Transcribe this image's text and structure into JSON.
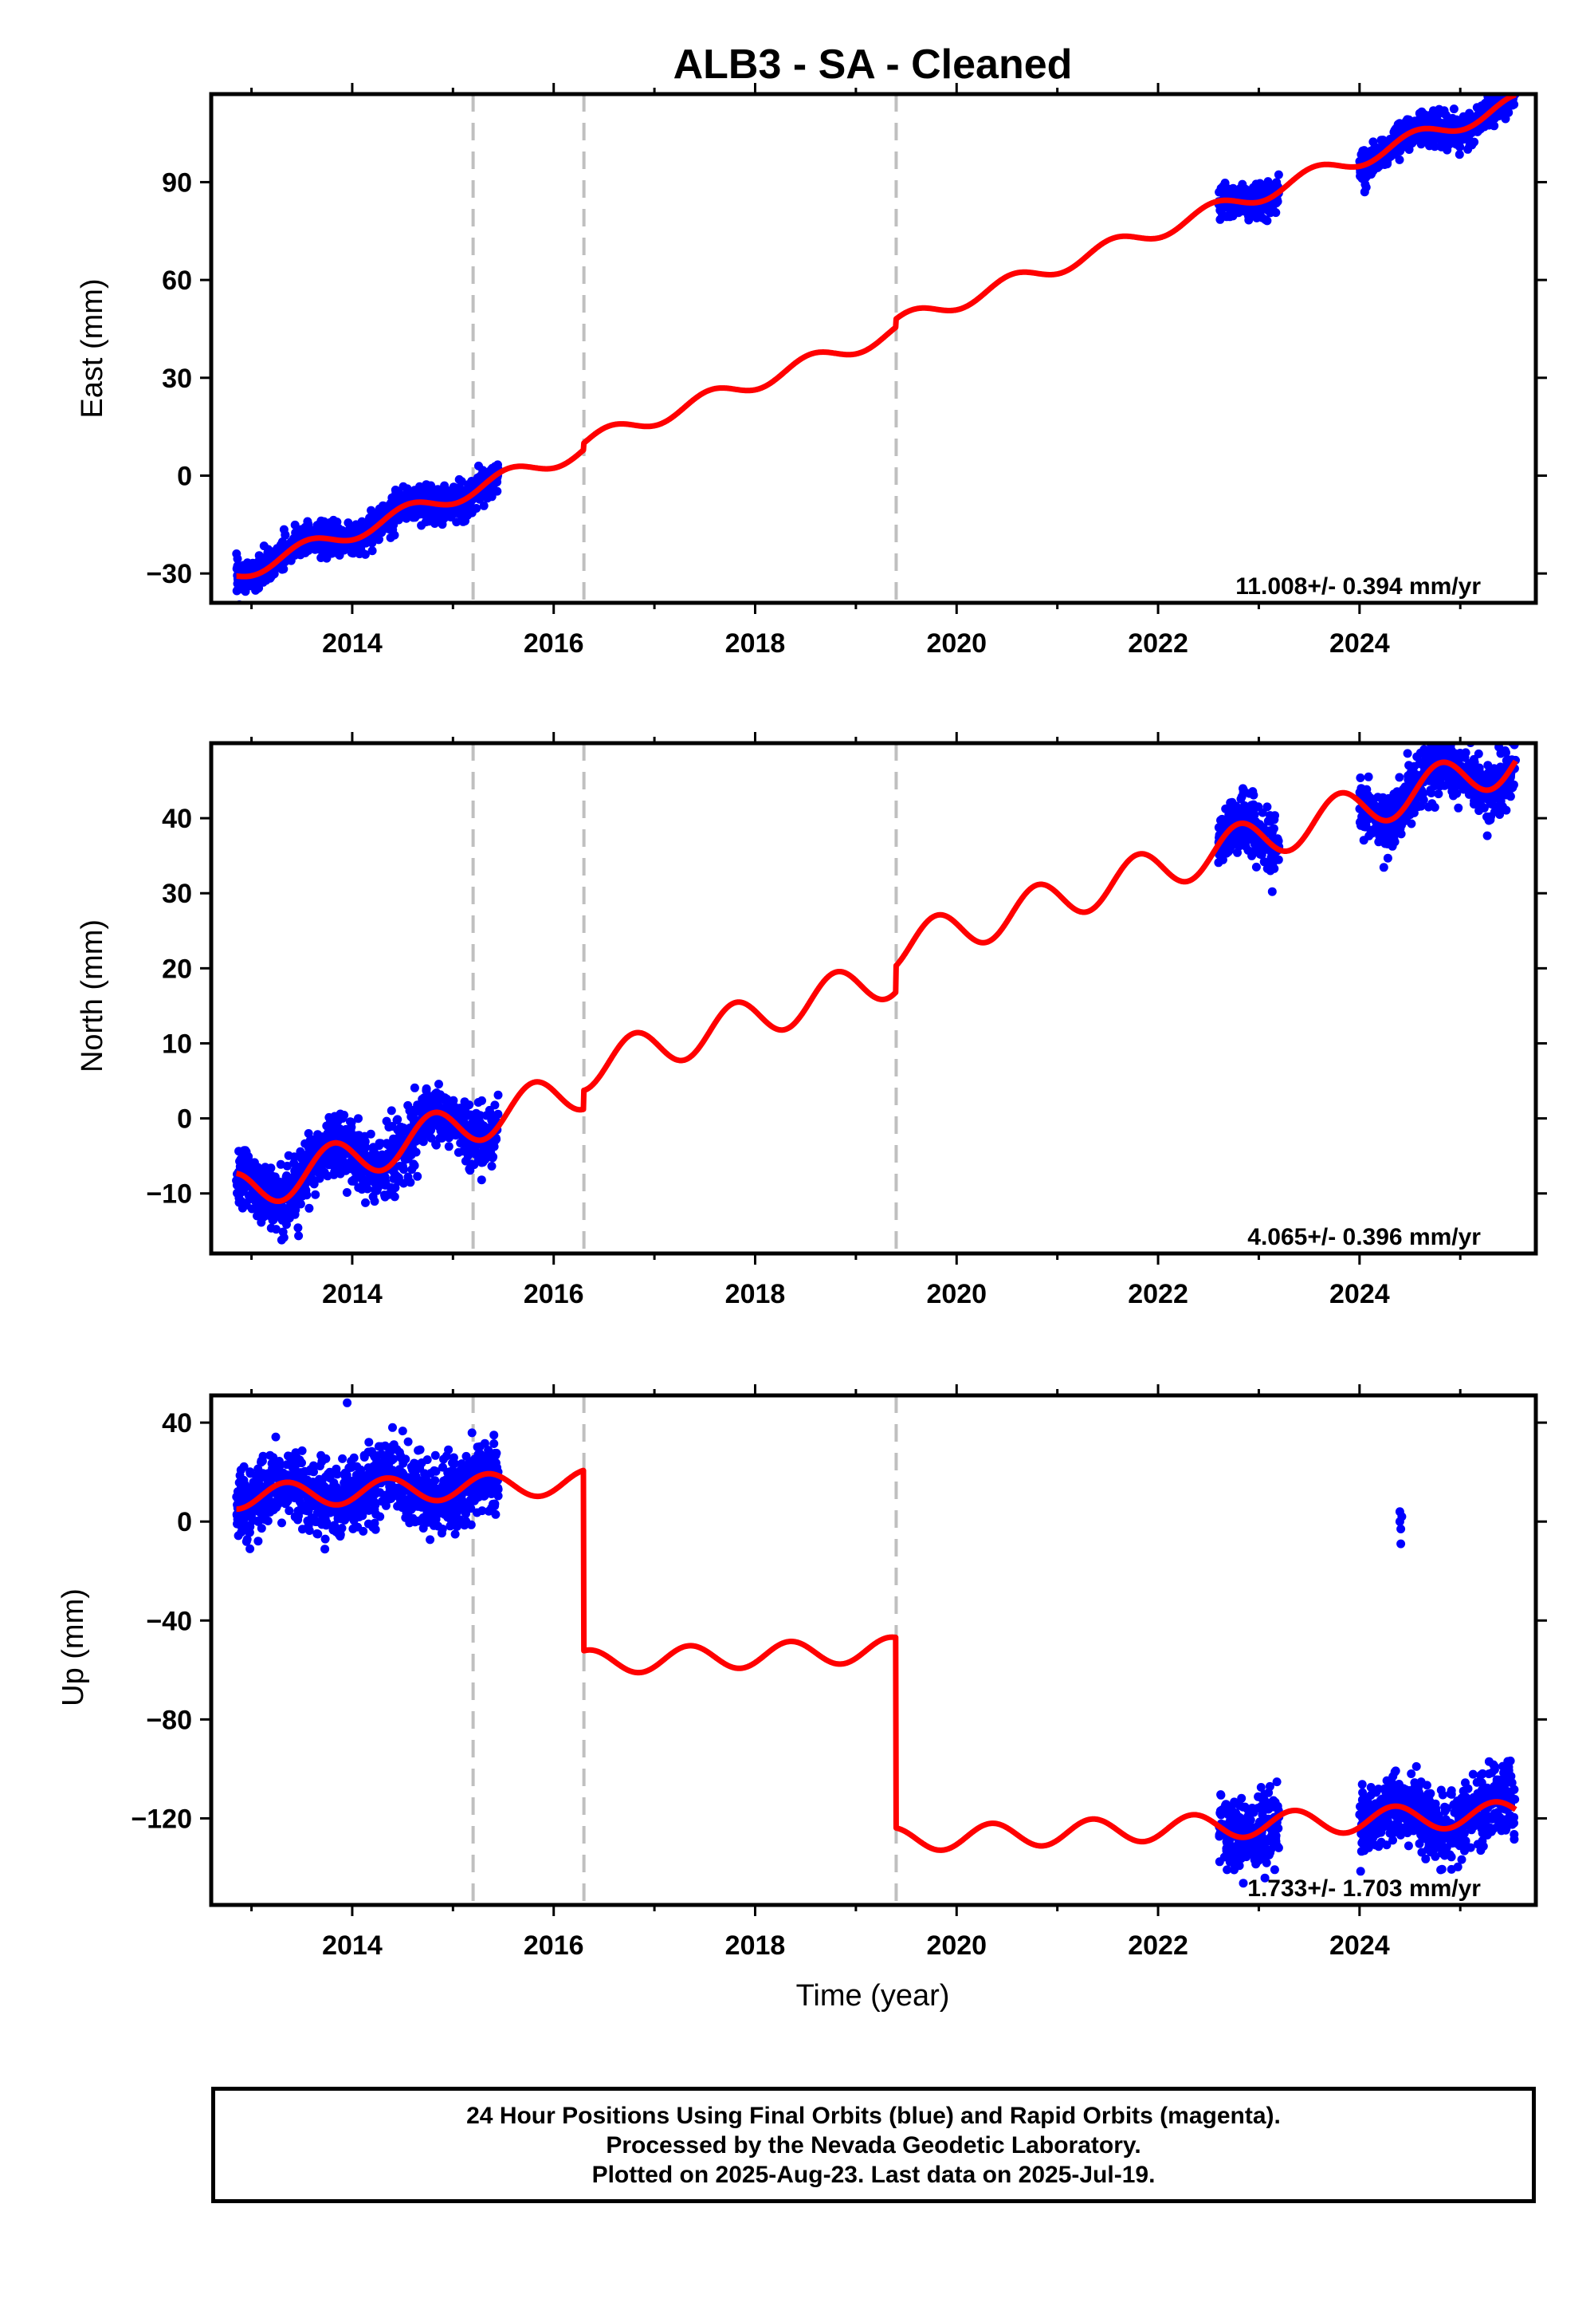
{
  "title": "ALB3  - SA - Cleaned",
  "colors": {
    "data": "#0000ff",
    "model": "#ff0000",
    "steps": "#bfbfbf",
    "frame": "#000000"
  },
  "chart_data": [
    {
      "type": "scatter",
      "component": "East",
      "ylabel": "East (mm)",
      "xlabel": "",
      "xlim": [
        2012.6,
        2025.75
      ],
      "ylim": [
        -39,
        117
      ],
      "xticks": [
        2014,
        2016,
        2018,
        2020,
        2022,
        2024
      ],
      "yticks": [
        -30,
        0,
        30,
        60,
        90
      ],
      "rate_label": "11.008+/- 0.394 mm/yr",
      "step_epochs": [
        2015.2,
        2016.3,
        2019.4
      ],
      "data_segments": [
        [
          2012.85,
          2015.45
        ],
        [
          2022.6,
          2023.2
        ],
        [
          2024.0,
          2025.55
        ]
      ],
      "model": {
        "intercept_at_2012_85": -30,
        "rate": 11.008,
        "steps": [
          [
            2016.3,
            2.0
          ],
          [
            2019.4,
            2.5
          ]
        ],
        "annual_amp": 2.5,
        "annual_phase": 0.3,
        "x_end": 2025.55
      },
      "data_noise": 2.5,
      "outliers": []
    },
    {
      "type": "scatter",
      "component": "North",
      "ylabel": "North (mm)",
      "xlabel": "",
      "xlim": [
        2012.6,
        2025.75
      ],
      "ylim": [
        -18,
        50
      ],
      "xticks": [
        2014,
        2016,
        2018,
        2020,
        2022,
        2024
      ],
      "yticks": [
        -10,
        0,
        10,
        20,
        30,
        40
      ],
      "rate_label": "4.065+/- 0.396 mm/yr",
      "step_epochs": [
        2015.2,
        2016.3,
        2019.4
      ],
      "data_segments": [
        [
          2012.85,
          2015.45
        ],
        [
          2022.6,
          2023.2
        ],
        [
          2024.0,
          2025.55
        ]
      ],
      "model": {
        "intercept_at_2012_85": -10,
        "rate": 4.065,
        "steps": [
          [
            2016.3,
            2.5
          ],
          [
            2019.4,
            3.5
          ]
        ],
        "annual_amp": 2.8,
        "annual_phase": 0.55,
        "x_end": 2025.55
      },
      "data_noise": 2.0,
      "outliers": []
    },
    {
      "type": "scatter",
      "component": "Up",
      "ylabel": "Up (mm)",
      "xlabel": "Time (year)",
      "xlim": [
        2012.6,
        2025.75
      ],
      "ylim": [
        -155,
        51
      ],
      "xticks": [
        2014,
        2016,
        2018,
        2020,
        2022,
        2024
      ],
      "yticks": [
        -120,
        -80,
        -40,
        0,
        40
      ],
      "rate_label": "1.733+/- 1.703 mm/yr",
      "step_epochs": [
        2015.2,
        2016.3,
        2019.4
      ],
      "data_segments": [
        [
          2012.85,
          2015.45
        ],
        [
          2022.6,
          2023.2
        ],
        [
          2024.0,
          2025.55
        ]
      ],
      "model": {
        "intercept_at_2012_85": 10,
        "rate": 1.733,
        "steps": [
          [
            2016.3,
            -73
          ],
          [
            2019.4,
            -77
          ]
        ],
        "annual_amp": 5.0,
        "annual_phase": 0.1,
        "x_end": 2025.55
      },
      "data_noise": 7.0,
      "outliers": [
        [
          2024.4,
          4
        ],
        [
          2024.4,
          0
        ],
        [
          2024.41,
          -3
        ],
        [
          2024.42,
          2
        ],
        [
          2024.41,
          -9
        ],
        [
          2013.95,
          48
        ],
        [
          2014.4,
          38
        ]
      ]
    }
  ],
  "footer": {
    "line1": "24 Hour Positions Using Final Orbits (blue) and Rapid Orbits (magenta).",
    "line2": "Processed by the Nevada Geodetic Laboratory.",
    "line3": "Plotted on 2025-Aug-23. Last data on 2025-Jul-19."
  }
}
